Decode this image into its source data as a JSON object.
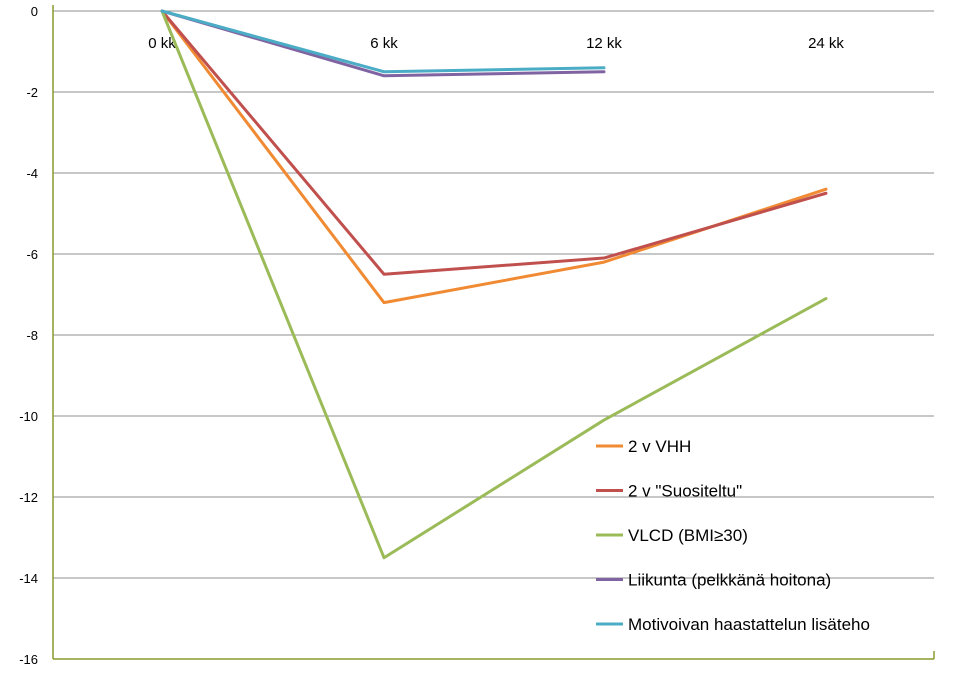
{
  "chart_data": {
    "type": "line",
    "categories": [
      "0 kk",
      "6 kk",
      "12 kk",
      "24 kk"
    ],
    "ylim": [
      -16,
      0
    ],
    "yticks": [
      0,
      -2,
      -4,
      -6,
      -8,
      -10,
      -12,
      -14,
      -16
    ],
    "grid": true,
    "legend_position": "bottom-right",
    "series": [
      {
        "name": "2 v VHH",
        "color": "#f08a33",
        "values": [
          0,
          -7.2,
          -6.2,
          -4.4
        ]
      },
      {
        "name": "2 v \"Suositeltu\"",
        "color": "#c0504d",
        "values": [
          0,
          -6.5,
          -6.1,
          -4.5
        ]
      },
      {
        "name": "VLCD (BMI≥30)",
        "color": "#9bbb59",
        "values": [
          0,
          -13.5,
          -10.1,
          -7.1
        ]
      },
      {
        "name": "Liikunta (pelkkänä hoitona)",
        "color": "#8064a2",
        "values": [
          0,
          -1.6,
          -1.5,
          null
        ]
      },
      {
        "name": "Motivoivan haastattelun lisäteho",
        "color": "#4bacc6",
        "values": [
          0,
          -1.5,
          -1.4,
          null
        ]
      }
    ]
  }
}
